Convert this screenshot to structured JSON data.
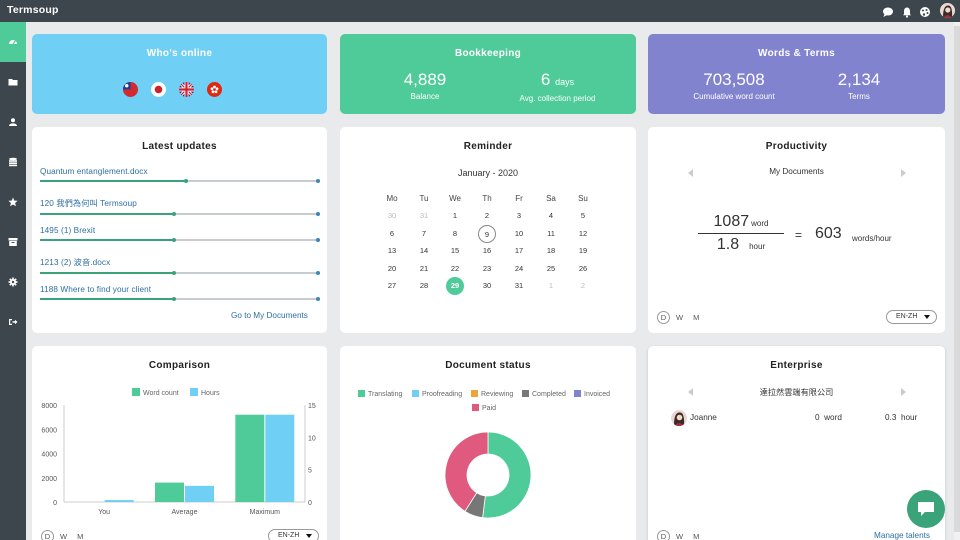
{
  "app": {
    "title": "Termsoup"
  },
  "topbar": {
    "icons": [
      "chat-icon",
      "bell-icon",
      "palette-icon",
      "user-avatar"
    ]
  },
  "sidebar": {
    "items": [
      "dashboard-icon",
      "folder-icon",
      "users-icon",
      "database-icon",
      "star-icon",
      "archive-icon",
      "gear-icon",
      "logout-icon"
    ],
    "active": "dashboard-icon"
  },
  "colors": {
    "green": "#4ecb99",
    "blue": "#6fcff5",
    "purple": "#8283cf",
    "sidebar": "#3d464d"
  },
  "online": {
    "title": "Who's online",
    "flags": [
      "taiwan-flag",
      "japan-flag",
      "uk-flag",
      "hong-kong-flag"
    ]
  },
  "bookkeeping": {
    "title": "Bookkeeping",
    "balance": {
      "value": "4,889",
      "label": "Balance"
    },
    "collection": {
      "value": "6",
      "unit": "days",
      "label": "Avg. collection period"
    }
  },
  "words": {
    "title": "Words & Terms",
    "cumulative": {
      "value": "703,508",
      "label": "Cumulative word count"
    },
    "terms": {
      "value": "2,134",
      "label": "Terms"
    }
  },
  "updates": {
    "title": "Latest updates",
    "items": [
      {
        "name": "Quantum entanglement.docx",
        "progress": 0.52
      },
      {
        "name": "120 我們為何叫 Termsoup",
        "progress": 0.48
      },
      {
        "name": "1495 (1) Brexit",
        "progress": 0.48
      },
      {
        "name": "1213 (2) 波音.docx",
        "progress": 0.48
      },
      {
        "name": "1188 Where to find your client",
        "progress": 0.48
      }
    ],
    "link": "Go to My Documents"
  },
  "reminder": {
    "title": "Reminder",
    "month": "January - 2020",
    "weekdays": [
      "Mo",
      "Tu",
      "We",
      "Th",
      "Fr",
      "Sa",
      "Su"
    ],
    "weeks": [
      [
        "30",
        "31",
        "1",
        "2",
        "3",
        "4",
        "5"
      ],
      [
        "6",
        "7",
        "8",
        "9",
        "10",
        "11",
        "12"
      ],
      [
        "13",
        "14",
        "15",
        "16",
        "17",
        "18",
        "19"
      ],
      [
        "20",
        "21",
        "22",
        "23",
        "24",
        "25",
        "26"
      ],
      [
        "27",
        "28",
        "29",
        "30",
        "31",
        "1",
        "2"
      ]
    ],
    "today": "9",
    "selected": "29"
  },
  "productivity": {
    "title": "Productivity",
    "nav_label": "My Documents",
    "numerator": "1087",
    "numerator_unit": "word",
    "denominator": "1.8",
    "denominator_unit": "hour",
    "equals": "=",
    "result": "603",
    "result_unit": "words/hour",
    "periods": [
      "D",
      "W",
      "M"
    ],
    "lang": "EN-ZH"
  },
  "comparison": {
    "title": "Comparison",
    "periods": [
      "D",
      "W",
      "M"
    ],
    "lang": "EN-ZH"
  },
  "chart_data": [
    {
      "type": "bar",
      "title": "Comparison",
      "categories": [
        "You",
        "Average",
        "Maximum"
      ],
      "series": [
        {
          "name": "Word count",
          "values": [
            0,
            1600,
            7200
          ],
          "axis": "left",
          "color": "#4ecb99"
        },
        {
          "name": "Hours",
          "values": [
            0.3,
            2.5,
            13.5
          ],
          "axis": "right",
          "color": "#6fcff5"
        }
      ],
      "y_left": {
        "ticks": [
          "0",
          "2000",
          "4000",
          "6000",
          "8000"
        ],
        "lim": [
          0,
          8000
        ]
      },
      "y_right": {
        "ticks": [
          "0",
          "5",
          "10",
          "15"
        ],
        "lim": [
          0,
          15
        ]
      },
      "legend": "top-center"
    },
    {
      "type": "pie",
      "title": "Document status",
      "legend": [
        "Translating",
        "Proofreading",
        "Reviewing",
        "Completed",
        "Invoiced",
        "Paid"
      ],
      "legend_colors": [
        "#4ecb99",
        "#6fcff5",
        "#f0a33a",
        "#777777",
        "#8283cf",
        "#e05a7f"
      ],
      "slices": [
        {
          "name": "Translating",
          "value": 52,
          "color": "#4ecb99"
        },
        {
          "name": "Completed",
          "value": 7,
          "color": "#777777"
        },
        {
          "name": "Paid",
          "value": 41,
          "color": "#e05a7f"
        }
      ]
    }
  ],
  "docstatus": {
    "title": "Document status"
  },
  "enterprise": {
    "title": "Enterprise",
    "company": "達拉然雲端有限公司",
    "member": {
      "name": "Joanne",
      "words": "0",
      "words_unit": "word",
      "hours": "0.3",
      "hours_unit": "hour"
    },
    "periods": [
      "D",
      "W",
      "M"
    ],
    "link": "Manage talents"
  }
}
